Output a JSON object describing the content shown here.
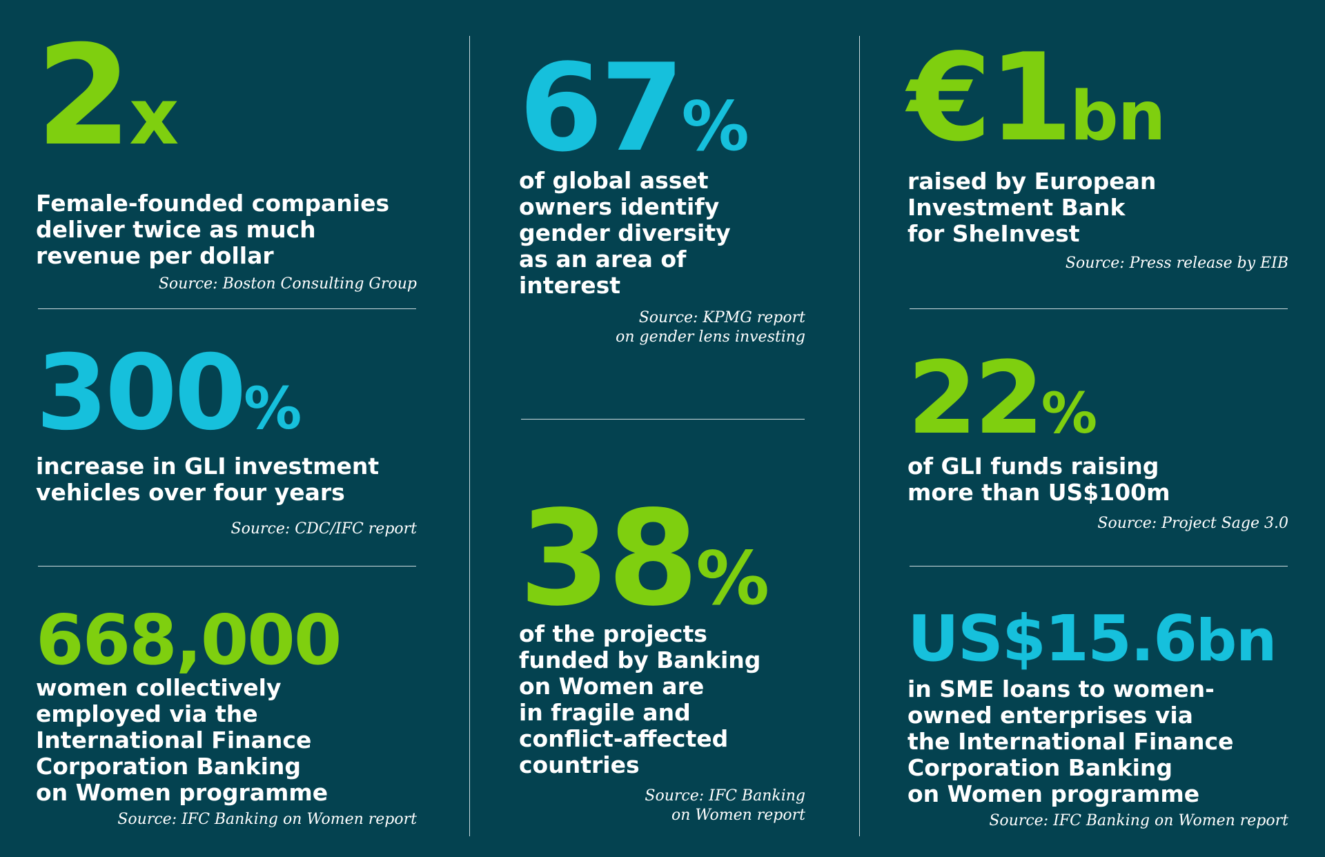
{
  "colors": {
    "background": "#044250",
    "green": "#7fcf0f",
    "blue": "#16c0dc",
    "text": "#ffffff"
  },
  "stats": [
    {
      "id": "s1",
      "number": "2",
      "suffix": "x",
      "color": "green",
      "lines": [
        "Female-founded companies",
        "deliver twice as much",
        "revenue per dollar"
      ],
      "source": "Source: Boston Consulting Group"
    },
    {
      "id": "s2",
      "number": "300",
      "suffix": "%",
      "color": "blue",
      "lines": [
        "increase in GLI investment",
        "vehicles over four years"
      ],
      "source": "Source: CDC/IFC report"
    },
    {
      "id": "s3",
      "number": "668,000",
      "suffix": "",
      "color": "green",
      "lines": [
        "women collectively",
        "employed via the",
        "International Finance",
        "Corporation Banking",
        "on Women programme"
      ],
      "source": "Source: IFC Banking on Women report"
    },
    {
      "id": "s4",
      "number": "67",
      "suffix": "%",
      "color": "blue",
      "lines": [
        "of global asset",
        "owners identify",
        "gender diversity",
        "as an area of",
        "interest"
      ],
      "source": "Source: KPMG report\non gender lens investing"
    },
    {
      "id": "s5",
      "number": "38",
      "suffix": "%",
      "color": "green",
      "lines": [
        "of the projects",
        "funded by Banking",
        "on Women are",
        "in fragile and",
        "conflict-affected",
        "countries"
      ],
      "source": "Source: IFC Banking\non Women report"
    },
    {
      "id": "s6",
      "number": "€1",
      "suffix": "bn",
      "color": "green",
      "lines": [
        "raised by European",
        "Investment Bank",
        "for SheInvest"
      ],
      "source": "Source: Press release by EIB"
    },
    {
      "id": "s7",
      "number": "22",
      "suffix": "%",
      "color": "green",
      "lines": [
        "of GLI funds raising",
        "more than US$100m"
      ],
      "source": "Source: Project Sage 3.0"
    },
    {
      "id": "s8",
      "number": "US$15.6",
      "suffix": "bn",
      "color": "blue",
      "lines": [
        "in SME loans to women-",
        "owned enterprises via",
        "the International Finance",
        "Corporation Banking",
        "on Women programme"
      ],
      "source": "Source: IFC Banking on Women report"
    }
  ]
}
